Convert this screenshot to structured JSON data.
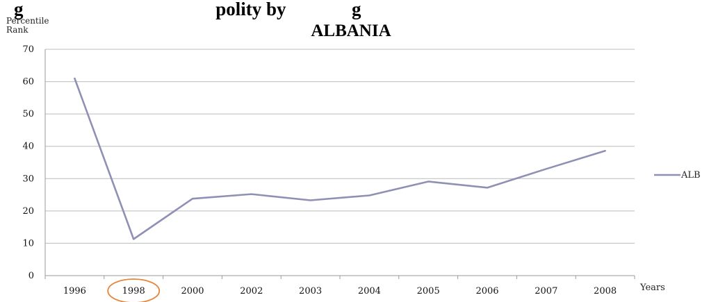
{
  "page": {
    "cropped_heading": "g                                         polity by              g"
  },
  "chart_data": {
    "type": "line",
    "title": "ALBANIA",
    "ylabel_line1": "Percentile",
    "ylabel_line2": "Rank",
    "xlabel": "Years",
    "categories": [
      "1996",
      "1998",
      "2000",
      "2002",
      "2003",
      "2004",
      "2005",
      "2006",
      "2007",
      "2008"
    ],
    "series": [
      {
        "name": "ALB",
        "color": "#8f90b4",
        "values": [
          61,
          11.3,
          23.8,
          25.2,
          23.3,
          24.8,
          29.1,
          27.2,
          33.0,
          38.6
        ]
      }
    ],
    "ylim": [
      0,
      70
    ],
    "yticks": [
      0,
      10,
      20,
      30,
      40,
      50,
      60,
      70
    ],
    "grid": true,
    "legend_position": "right",
    "highlight": {
      "category": "1998",
      "shape": "circle",
      "color": "#e8843a"
    }
  }
}
